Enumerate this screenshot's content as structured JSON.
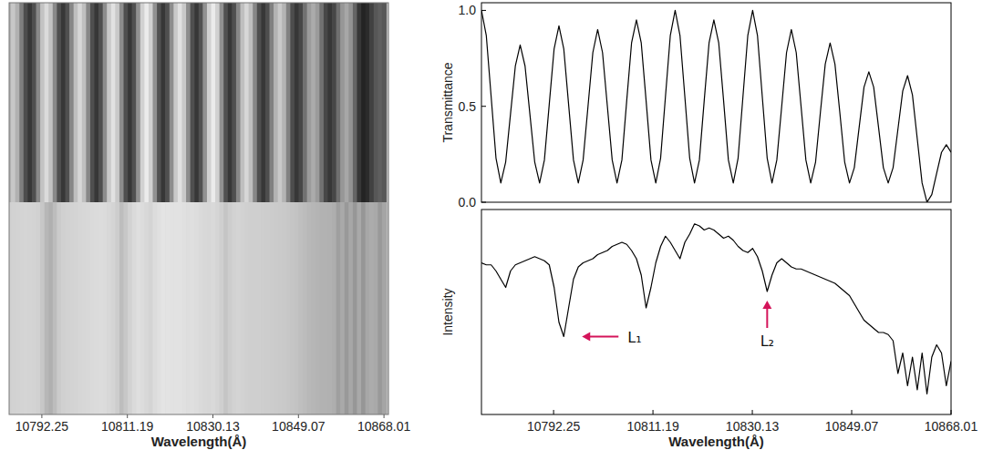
{
  "chart_data": [
    {
      "type": "image",
      "x_label": "Wavelength(Å)",
      "xlim": [
        10785,
        10869
      ],
      "xticks": [
        10792.25,
        10811.19,
        10830.13,
        10849.07,
        10868.01
      ],
      "tick_labels": "x",
      "x": [
        10778.5,
        10779.42,
        10780.35,
        10781.27,
        10782.19,
        10783.12,
        10784.04,
        10784.96,
        10785.88,
        10786.81,
        10787.73,
        10788.65,
        10789.58,
        10790.5,
        10791.42,
        10792.35,
        10793.27,
        10794.19,
        10795.11,
        10796.04,
        10796.96,
        10797.88,
        10798.81,
        10799.73,
        10800.65,
        10801.58,
        10802.5,
        10803.42,
        10804.34,
        10805.27,
        10806.19,
        10807.11,
        10808.04,
        10808.96,
        10809.88,
        10810.81,
        10811.73,
        10812.65,
        10813.57,
        10814.5,
        10815.42,
        10816.34,
        10817.27,
        10818.19,
        10819.11,
        10820.04,
        10820.96,
        10821.88,
        10822.8,
        10823.73,
        10824.65,
        10825.57,
        10826.5,
        10827.42,
        10828.34,
        10829.27,
        10830.19,
        10831.11,
        10832.03,
        10832.96,
        10833.88,
        10834.8,
        10835.73,
        10836.65,
        10837.57,
        10838.5,
        10839.42,
        10840.34,
        10841.26,
        10842.19,
        10843.11,
        10844.03,
        10844.96,
        10845.88,
        10846.8,
        10847.73,
        10848.65,
        10849.57,
        10850.49,
        10851.42,
        10852.34,
        10853.26,
        10854.19,
        10855.11,
        10856.03,
        10856.96,
        10857.88,
        10858.8,
        10859.72,
        10860.65,
        10861.57,
        10862.49,
        10863.42,
        10864.34,
        10865.26,
        10866.19,
        10867.11,
        10868.01
      ],
      "fringes": [
        1.0,
        0.87,
        0.55,
        0.23,
        0.1,
        0.21,
        0.46,
        0.71,
        0.82,
        0.71,
        0.46,
        0.21,
        0.1,
        0.22,
        0.51,
        0.8,
        0.92,
        0.8,
        0.51,
        0.22,
        0.1,
        0.22,
        0.5,
        0.78,
        0.9,
        0.78,
        0.5,
        0.22,
        0.1,
        0.22,
        0.53,
        0.83,
        0.95,
        0.83,
        0.53,
        0.22,
        0.1,
        0.23,
        0.55,
        0.87,
        1.0,
        0.87,
        0.55,
        0.23,
        0.1,
        0.22,
        0.53,
        0.83,
        0.95,
        0.83,
        0.53,
        0.22,
        0.1,
        0.23,
        0.55,
        0.87,
        1.0,
        0.87,
        0.55,
        0.23,
        0.1,
        0.22,
        0.5,
        0.78,
        0.9,
        0.78,
        0.5,
        0.22,
        0.1,
        0.21,
        0.47,
        0.72,
        0.83,
        0.72,
        0.47,
        0.21,
        0.1,
        0.18,
        0.39,
        0.6,
        0.68,
        0.6,
        0.39,
        0.18,
        0.1,
        0.18,
        0.38,
        0.58,
        0.66,
        0.56,
        0.33,
        0.1,
        0.0,
        0.04,
        0.15,
        0.26,
        0.3,
        0.26
      ],
      "spectrum": [
        0.74,
        0.73,
        0.73,
        0.7,
        0.66,
        0.62,
        0.7,
        0.73,
        0.74,
        0.75,
        0.76,
        0.77,
        0.76,
        0.75,
        0.73,
        0.62,
        0.45,
        0.38,
        0.52,
        0.66,
        0.72,
        0.74,
        0.75,
        0.76,
        0.78,
        0.79,
        0.8,
        0.82,
        0.83,
        0.84,
        0.83,
        0.8,
        0.76,
        0.68,
        0.52,
        0.62,
        0.74,
        0.82,
        0.87,
        0.84,
        0.8,
        0.76,
        0.84,
        0.88,
        0.93,
        0.92,
        0.9,
        0.91,
        0.9,
        0.88,
        0.86,
        0.87,
        0.85,
        0.82,
        0.8,
        0.79,
        0.81,
        0.77,
        0.7,
        0.6,
        0.68,
        0.74,
        0.76,
        0.74,
        0.72,
        0.71,
        0.71,
        0.7,
        0.69,
        0.68,
        0.67,
        0.66,
        0.65,
        0.64,
        0.62,
        0.6,
        0.58,
        0.54,
        0.5,
        0.46,
        0.44,
        0.42,
        0.4,
        0.4,
        0.39,
        0.36,
        0.2,
        0.3,
        0.14,
        0.28,
        0.12,
        0.3,
        0.1,
        0.28,
        0.34,
        0.3,
        0.14,
        0.26
      ]
    },
    {
      "type": "line",
      "y_label": "Transmittance",
      "xlim": [
        10778.5,
        10868.01
      ],
      "ylim": [
        0,
        1.04
      ],
      "yticks": [
        {
          "value": 0,
          "label": "0.0"
        },
        {
          "value": 0.5,
          "label": "0.5"
        },
        {
          "value": 1,
          "label": "1.0"
        }
      ],
      "tick_labels": "y",
      "color": "#000000",
      "x": [
        10778.5,
        10779.42,
        10780.35,
        10781.27,
        10782.19,
        10783.12,
        10784.04,
        10784.96,
        10785.88,
        10786.81,
        10787.73,
        10788.65,
        10789.58,
        10790.5,
        10791.42,
        10792.35,
        10793.27,
        10794.19,
        10795.11,
        10796.04,
        10796.96,
        10797.88,
        10798.81,
        10799.73,
        10800.65,
        10801.58,
        10802.5,
        10803.42,
        10804.34,
        10805.27,
        10806.19,
        10807.11,
        10808.04,
        10808.96,
        10809.88,
        10810.81,
        10811.73,
        10812.65,
        10813.57,
        10814.5,
        10815.42,
        10816.34,
        10817.27,
        10818.19,
        10819.11,
        10820.04,
        10820.96,
        10821.88,
        10822.8,
        10823.73,
        10824.65,
        10825.57,
        10826.5,
        10827.42,
        10828.34,
        10829.27,
        10830.19,
        10831.11,
        10832.03,
        10832.96,
        10833.88,
        10834.8,
        10835.73,
        10836.65,
        10837.57,
        10838.5,
        10839.42,
        10840.34,
        10841.26,
        10842.19,
        10843.11,
        10844.03,
        10844.96,
        10845.88,
        10846.8,
        10847.73,
        10848.65,
        10849.57,
        10850.49,
        10851.42,
        10852.34,
        10853.26,
        10854.19,
        10855.11,
        10856.03,
        10856.96,
        10857.88,
        10858.8,
        10859.72,
        10860.65,
        10861.57,
        10862.49,
        10863.42,
        10864.34,
        10865.26,
        10866.19,
        10867.11,
        10868.01
      ],
      "values": [
        1.0,
        0.87,
        0.55,
        0.23,
        0.1,
        0.21,
        0.46,
        0.71,
        0.82,
        0.71,
        0.46,
        0.21,
        0.1,
        0.22,
        0.51,
        0.8,
        0.92,
        0.8,
        0.51,
        0.22,
        0.1,
        0.22,
        0.5,
        0.78,
        0.9,
        0.78,
        0.5,
        0.22,
        0.1,
        0.22,
        0.53,
        0.83,
        0.95,
        0.83,
        0.53,
        0.22,
        0.1,
        0.23,
        0.55,
        0.87,
        1.0,
        0.87,
        0.55,
        0.23,
        0.1,
        0.22,
        0.53,
        0.83,
        0.95,
        0.83,
        0.53,
        0.22,
        0.1,
        0.23,
        0.55,
        0.87,
        1.0,
        0.87,
        0.55,
        0.23,
        0.1,
        0.22,
        0.5,
        0.78,
        0.9,
        0.78,
        0.5,
        0.22,
        0.1,
        0.21,
        0.47,
        0.72,
        0.83,
        0.72,
        0.47,
        0.21,
        0.1,
        0.18,
        0.39,
        0.6,
        0.68,
        0.6,
        0.39,
        0.18,
        0.1,
        0.18,
        0.38,
        0.58,
        0.66,
        0.56,
        0.33,
        0.1,
        0.0,
        0.04,
        0.15,
        0.26,
        0.3,
        0.26
      ]
    },
    {
      "type": "line",
      "y_label": "Intensity",
      "x_label": "Wavelength(Å)",
      "xlim": [
        10778.5,
        10868.01
      ],
      "ylim": [
        0,
        1
      ],
      "xticks": [
        10792.25,
        10811.19,
        10830.13,
        10849.07,
        10868.01
      ],
      "tick_labels": "x",
      "color": "#000000",
      "x": [
        10778.5,
        10779.42,
        10780.35,
        10781.27,
        10782.19,
        10783.12,
        10784.04,
        10784.96,
        10785.88,
        10786.81,
        10787.73,
        10788.65,
        10789.58,
        10790.5,
        10791.42,
        10792.35,
        10793.27,
        10794.19,
        10795.11,
        10796.04,
        10796.96,
        10797.88,
        10798.81,
        10799.73,
        10800.65,
        10801.58,
        10802.5,
        10803.42,
        10804.34,
        10805.27,
        10806.19,
        10807.11,
        10808.04,
        10808.96,
        10809.88,
        10810.81,
        10811.73,
        10812.65,
        10813.57,
        10814.5,
        10815.42,
        10816.34,
        10817.27,
        10818.19,
        10819.11,
        10820.04,
        10820.96,
        10821.88,
        10822.8,
        10823.73,
        10824.65,
        10825.57,
        10826.5,
        10827.42,
        10828.34,
        10829.27,
        10830.19,
        10831.11,
        10832.03,
        10832.96,
        10833.88,
        10834.8,
        10835.73,
        10836.65,
        10837.57,
        10838.5,
        10839.42,
        10840.34,
        10841.26,
        10842.19,
        10843.11,
        10844.03,
        10844.96,
        10845.88,
        10846.8,
        10847.73,
        10848.65,
        10849.57,
        10850.49,
        10851.42,
        10852.34,
        10853.26,
        10854.19,
        10855.11,
        10856.03,
        10856.96,
        10857.88,
        10858.8,
        10859.72,
        10860.65,
        10861.57,
        10862.49,
        10863.42,
        10864.34,
        10865.26,
        10866.19,
        10867.11,
        10868.01
      ],
      "values": [
        0.74,
        0.73,
        0.73,
        0.7,
        0.66,
        0.62,
        0.7,
        0.73,
        0.74,
        0.75,
        0.76,
        0.77,
        0.76,
        0.75,
        0.73,
        0.62,
        0.45,
        0.38,
        0.52,
        0.66,
        0.72,
        0.74,
        0.75,
        0.76,
        0.78,
        0.79,
        0.8,
        0.82,
        0.83,
        0.84,
        0.83,
        0.8,
        0.76,
        0.68,
        0.52,
        0.62,
        0.74,
        0.82,
        0.87,
        0.84,
        0.8,
        0.76,
        0.84,
        0.88,
        0.93,
        0.92,
        0.9,
        0.91,
        0.9,
        0.88,
        0.86,
        0.87,
        0.85,
        0.82,
        0.8,
        0.79,
        0.81,
        0.77,
        0.7,
        0.6,
        0.68,
        0.74,
        0.76,
        0.74,
        0.72,
        0.71,
        0.71,
        0.7,
        0.69,
        0.68,
        0.67,
        0.66,
        0.65,
        0.64,
        0.62,
        0.6,
        0.58,
        0.54,
        0.5,
        0.46,
        0.44,
        0.42,
        0.4,
        0.4,
        0.39,
        0.36,
        0.2,
        0.3,
        0.14,
        0.28,
        0.12,
        0.3,
        0.1,
        0.28,
        0.34,
        0.3,
        0.14,
        0.26
      ],
      "annotations": [
        {
          "text": "L₁",
          "x": 10794.19,
          "y": 0.38,
          "color": "#d4145a"
        },
        {
          "text": "L₂",
          "x": 10832.96,
          "y": 0.6,
          "color": "#d4145a"
        }
      ]
    }
  ]
}
